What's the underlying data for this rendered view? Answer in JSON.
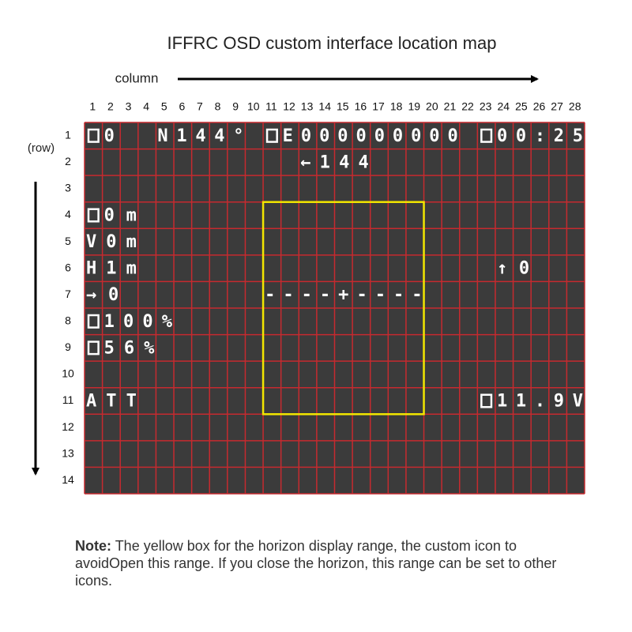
{
  "title": "IFFRC OSD custom interface location map",
  "column_label": "column",
  "row_label": "(row)",
  "columns": [
    "1",
    "2",
    "3",
    "4",
    "5",
    "6",
    "7",
    "8",
    "9",
    "10",
    "11",
    "12",
    "13",
    "14",
    "15",
    "16",
    "17",
    "18",
    "19",
    "20",
    "21",
    "22",
    "23",
    "24",
    "25",
    "26",
    "27",
    "28"
  ],
  "rows": [
    "1",
    "2",
    "3",
    "4",
    "5",
    "6",
    "7",
    "8",
    "9",
    "10",
    "11",
    "12",
    "13",
    "14"
  ],
  "osd": [
    "0",
    "N144°",
    "E000000000",
    "00:25",
    "←144",
    "0m",
    "V0m",
    "H1m",
    "→0",
    "100%",
    "56%",
    "ATT",
    "↑0",
    "----+----",
    "11.9V"
  ],
  "note": {
    "label": "Note:",
    "text": "The yellow box for the horizon display range, the custom icon to avoidOpen this range. If you close the horizon, this range can be set to other icons."
  }
}
